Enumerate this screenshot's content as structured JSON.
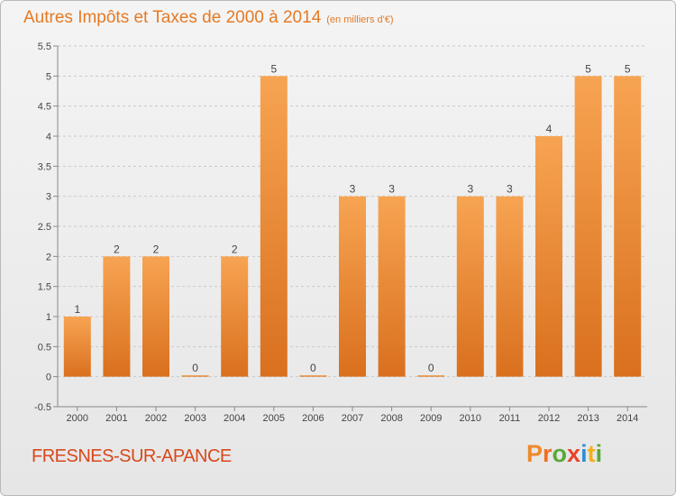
{
  "header": {
    "title": "Autres Impôts et Taxes de 2000 à 2014",
    "subtitle": "(en milliers d'€)"
  },
  "footer": {
    "commune": "FRESNES-SUR-APANCE",
    "logo_text": "Proxiti"
  },
  "colors": {
    "accent": "#e57a24",
    "bar_top": "#f7a452",
    "bar_bottom": "#d9701e",
    "commune": "#d8481c",
    "logo": [
      "#ee8a2a",
      "#ef6e22",
      "#5aa83a",
      "#e8432a",
      "#2f8fd6",
      "#f2b01e",
      "#5aa83a"
    ]
  },
  "chart_data": {
    "type": "bar",
    "categories": [
      "2000",
      "2001",
      "2002",
      "2003",
      "2004",
      "2005",
      "2006",
      "2007",
      "2008",
      "2009",
      "2010",
      "2011",
      "2012",
      "2013",
      "2014"
    ],
    "values": [
      1,
      2,
      2,
      0,
      2,
      5,
      0,
      3,
      3,
      0,
      3,
      3,
      4,
      5,
      5
    ],
    "data_labels": [
      "1",
      "2",
      "2",
      "0",
      "2",
      "5",
      "0",
      "3",
      "3",
      "0",
      "3",
      "3",
      "4",
      "5",
      "5"
    ],
    "yticks": [
      "-0.5",
      "0",
      "0.5",
      "1",
      "1.5",
      "2",
      "2.5",
      "3",
      "3.5",
      "4",
      "4.5",
      "5",
      "5.5"
    ],
    "ylim": [
      -0.5,
      5.5
    ],
    "grid": "horizontal dashed",
    "title": "Autres Impôts et Taxes de 2000 à 2014",
    "xlabel": "",
    "ylabel": ""
  }
}
